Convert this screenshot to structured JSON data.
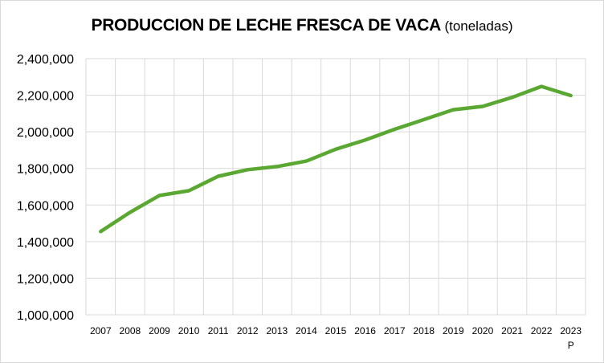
{
  "chart_data": {
    "type": "line",
    "title": "PRODUCCION DE LECHE FRESCA DE VACA",
    "title_unit": "(toneladas)",
    "xlabel": "",
    "ylabel": "",
    "categories": [
      "2007",
      "2008",
      "2009",
      "2010",
      "2011",
      "2012",
      "2013",
      "2014",
      "2015",
      "2016",
      "2017",
      "2018",
      "2019",
      "2020",
      "2021",
      "2022",
      "2023"
    ],
    "category_notes": {
      "2023": "P"
    },
    "ylim": [
      1000000,
      2400000
    ],
    "ytick_labels": [
      "1,000,000",
      "1,200,000",
      "1,400,000",
      "1,600,000",
      "1,800,000",
      "2,000,000",
      "2,200,000",
      "2,400,000"
    ],
    "grid": true,
    "legend": "none",
    "series": [
      {
        "color": "#5aa832",
        "values": [
          1455000,
          1560000,
          1652000,
          1678000,
          1757000,
          1793000,
          1810000,
          1840000,
          1905000,
          1955000,
          2014000,
          2067000,
          2121000,
          2139000,
          2188000,
          2248000,
          2198000
        ]
      }
    ],
    "colors": {
      "grid": "#d9d9d9",
      "line": "#5aa832"
    }
  }
}
